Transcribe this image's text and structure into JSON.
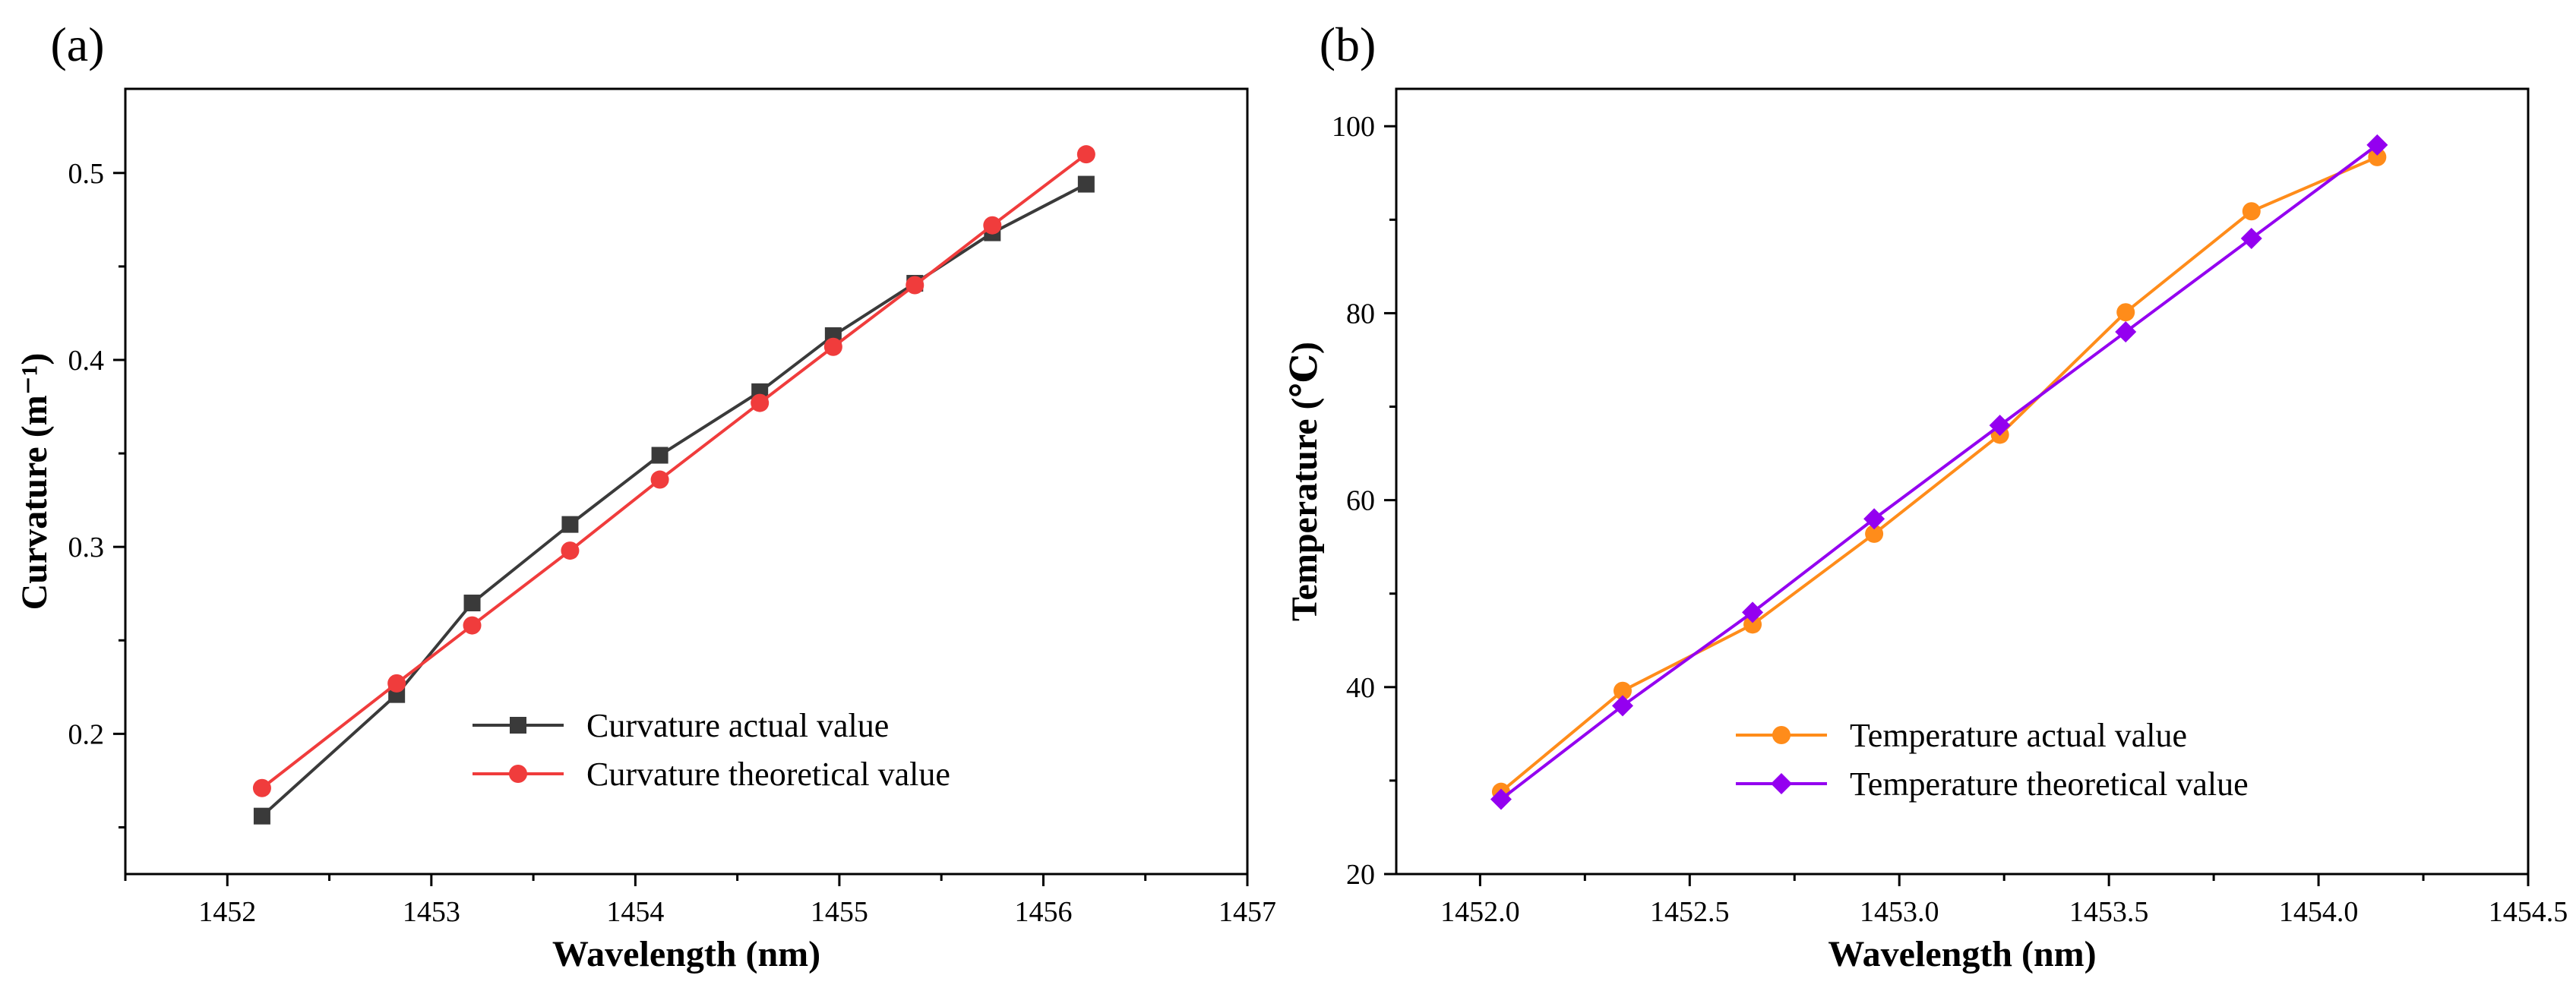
{
  "chart_data": [
    {
      "type": "line",
      "panel_label": "(a)",
      "title": "",
      "xlabel": "Wavelength (nm)",
      "ylabel": "Curvature (m⁻¹)",
      "xlim": [
        1451.5,
        1457
      ],
      "ylim": [
        0.125,
        0.545
      ],
      "x_ticks": [
        "1452",
        "1453",
        "1454",
        "1455",
        "1456",
        "1457"
      ],
      "y_ticks": [
        "0.2",
        "0.3",
        "0.4",
        "0.5"
      ],
      "grid": false,
      "legend_position": "bottom-right",
      "series": [
        {
          "name": "Curvature actual value",
          "color": "#3a3a3a",
          "marker": "square",
          "x": [
            1452.17,
            1452.83,
            1453.2,
            1453.68,
            1454.12,
            1454.61,
            1454.97,
            1455.37,
            1455.75,
            1456.21
          ],
          "y": [
            0.156,
            0.221,
            0.27,
            0.312,
            0.349,
            0.383,
            0.413,
            0.441,
            0.468,
            0.494
          ]
        },
        {
          "name": "Curvature theoretical value",
          "color": "#f03c3c",
          "marker": "circle",
          "x": [
            1452.17,
            1452.83,
            1453.2,
            1453.68,
            1454.12,
            1454.61,
            1454.97,
            1455.37,
            1455.75,
            1456.21
          ],
          "y": [
            0.171,
            0.227,
            0.258,
            0.298,
            0.336,
            0.377,
            0.407,
            0.44,
            0.472,
            0.51
          ]
        }
      ]
    },
    {
      "type": "line",
      "panel_label": "(b)",
      "title": "",
      "xlabel": "Wavelength (nm)",
      "ylabel": "Temperature (℃)",
      "xlim": [
        1451.8,
        1454.5
      ],
      "ylim": [
        20,
        104
      ],
      "x_ticks": [
        "1452.0",
        "1452.5",
        "1453.0",
        "1453.5",
        "1454.0",
        "1454.5"
      ],
      "y_ticks": [
        "20",
        "40",
        "60",
        "80",
        "100"
      ],
      "grid": false,
      "legend_position": "bottom-right",
      "series": [
        {
          "name": "Temperature actual value",
          "color": "#ff8c1a",
          "marker": "circle",
          "x": [
            1452.05,
            1452.34,
            1452.65,
            1452.94,
            1453.24,
            1453.54,
            1453.84,
            1454.14
          ],
          "y": [
            28.8,
            39.6,
            46.7,
            56.4,
            67.0,
            80.1,
            90.9,
            96.7
          ]
        },
        {
          "name": "Temperature theoretical value",
          "color": "#9400f0",
          "marker": "diamond",
          "x": [
            1452.05,
            1452.34,
            1452.65,
            1452.94,
            1453.24,
            1453.54,
            1453.84,
            1454.14
          ],
          "y": [
            28.0,
            38.0,
            48.0,
            58.0,
            68.0,
            78.0,
            88.0,
            98.0
          ]
        }
      ]
    }
  ]
}
